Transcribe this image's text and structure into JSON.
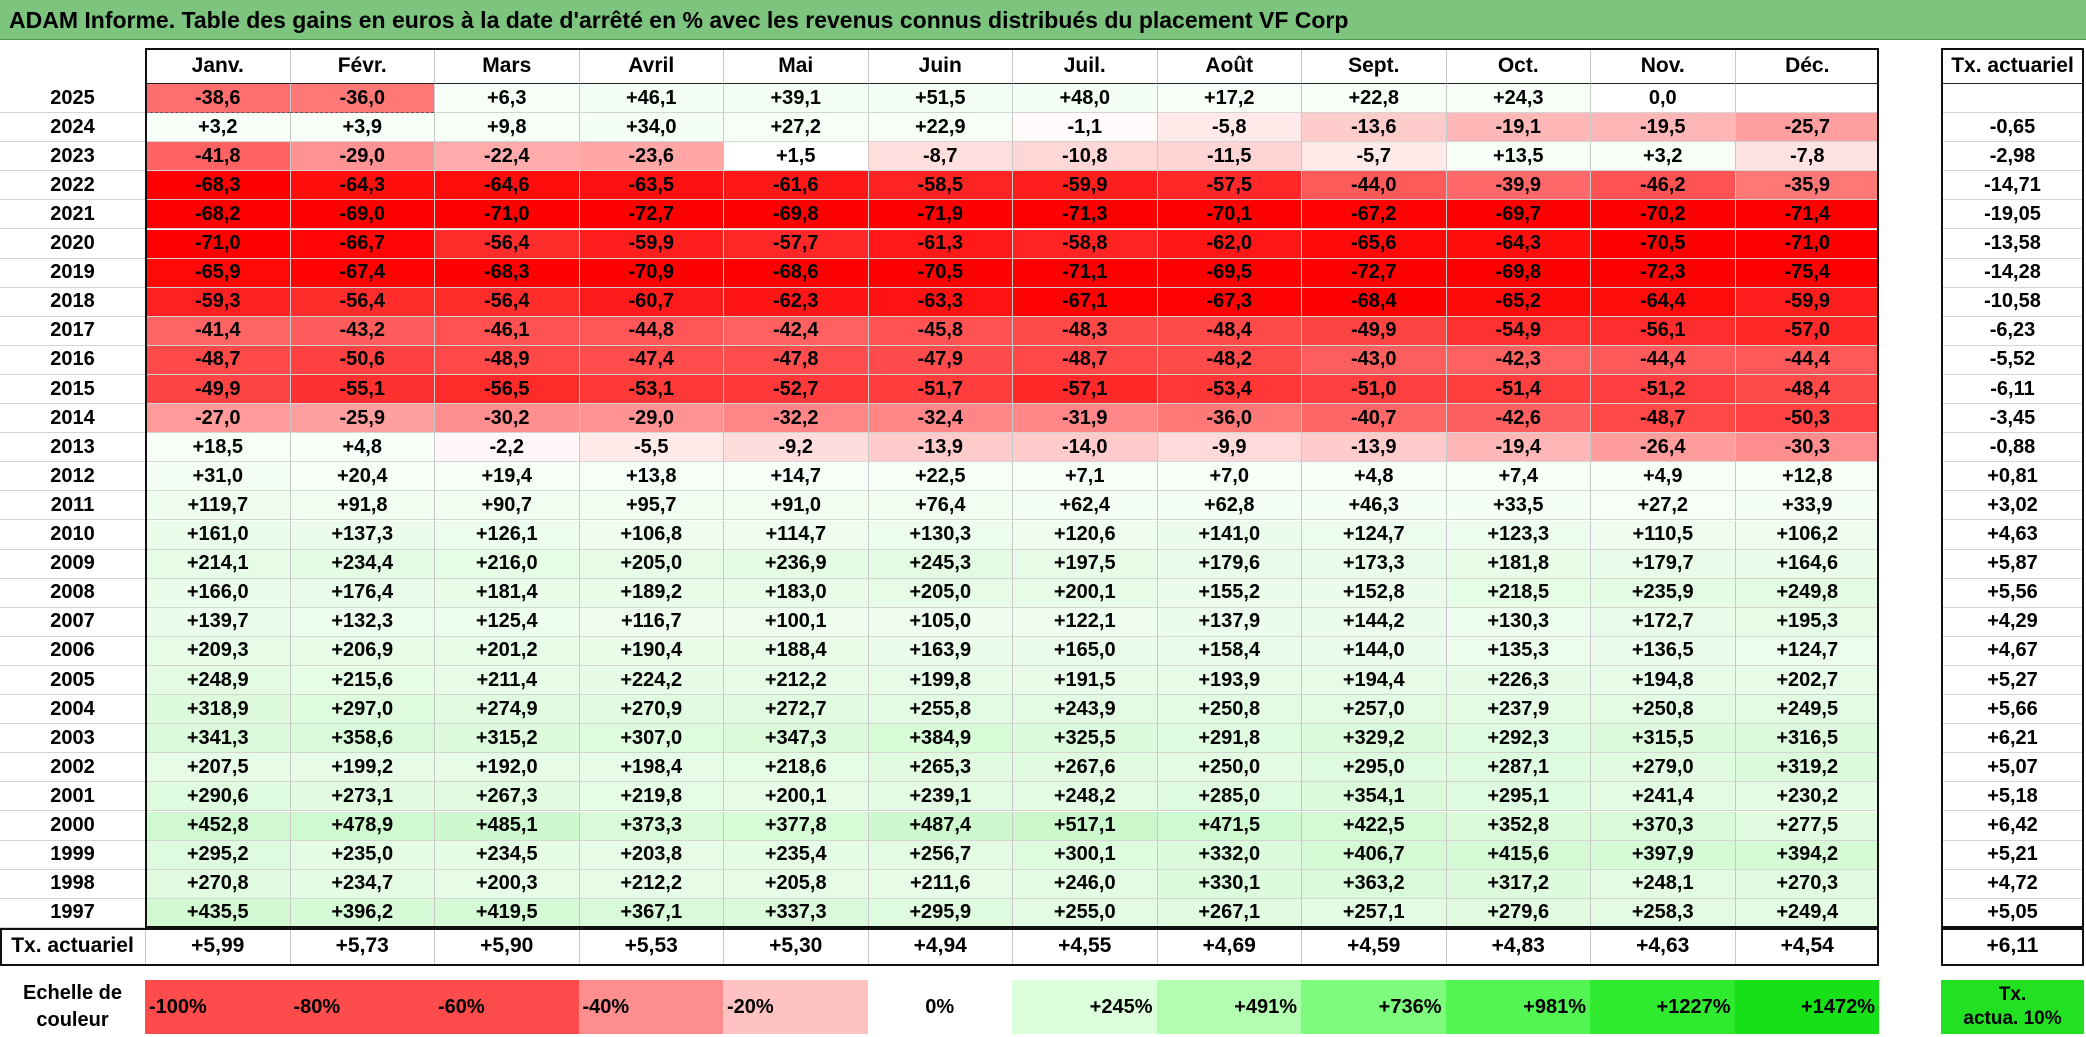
{
  "title": "ADAM Informe. Table des gains en euros à la date d'arrêté en % avec les revenus connus distribués du placement VF Corp",
  "months": [
    "Janv.",
    "Févr.",
    "Mars",
    "Avril",
    "Mai",
    "Juin",
    "Juil.",
    "Août",
    "Sept.",
    "Oct.",
    "Nov.",
    "Déc."
  ],
  "rate_header": "Tx. actuariel",
  "rows": [
    {
      "year": "2025",
      "values": [
        "-38,6",
        "-36,0",
        "+6,3",
        "+46,1",
        "+39,1",
        "+51,5",
        "+48,0",
        "+17,2",
        "+22,8",
        "+24,3",
        "0,0",
        ""
      ],
      "rate": ""
    },
    {
      "year": "2024",
      "values": [
        "+3,2",
        "+3,9",
        "+9,8",
        "+34,0",
        "+27,2",
        "+22,9",
        "-1,1",
        "-5,8",
        "-13,6",
        "-19,1",
        "-19,5",
        "-25,7"
      ],
      "rate": "-0,65"
    },
    {
      "year": "2023",
      "values": [
        "-41,8",
        "-29,0",
        "-22,4",
        "-23,6",
        "+1,5",
        "-8,7",
        "-10,8",
        "-11,5",
        "-5,7",
        "+13,5",
        "+3,2",
        "-7,8"
      ],
      "rate": "-2,98"
    },
    {
      "year": "2022",
      "values": [
        "-68,3",
        "-64,3",
        "-64,6",
        "-63,5",
        "-61,6",
        "-58,5",
        "-59,9",
        "-57,5",
        "-44,0",
        "-39,9",
        "-46,2",
        "-35,9"
      ],
      "rate": "-14,71"
    },
    {
      "year": "2021",
      "values": [
        "-68,2",
        "-69,0",
        "-71,0",
        "-72,7",
        "-69,8",
        "-71,9",
        "-71,3",
        "-70,1",
        "-67,2",
        "-69,7",
        "-70,2",
        "-71,4"
      ],
      "rate": "-19,05"
    },
    {
      "year": "2020",
      "values": [
        "-71,0",
        "-66,7",
        "-56,4",
        "-59,9",
        "-57,7",
        "-61,3",
        "-58,8",
        "-62,0",
        "-65,6",
        "-64,3",
        "-70,5",
        "-71,0"
      ],
      "rate": "-13,58"
    },
    {
      "year": "2019",
      "values": [
        "-65,9",
        "-67,4",
        "-68,3",
        "-70,9",
        "-68,6",
        "-70,5",
        "-71,1",
        "-69,5",
        "-72,7",
        "-69,8",
        "-72,3",
        "-75,4"
      ],
      "rate": "-14,28"
    },
    {
      "year": "2018",
      "values": [
        "-59,3",
        "-56,4",
        "-56,4",
        "-60,7",
        "-62,3",
        "-63,3",
        "-67,1",
        "-67,3",
        "-68,4",
        "-65,2",
        "-64,4",
        "-59,9"
      ],
      "rate": "-10,58"
    },
    {
      "year": "2017",
      "values": [
        "-41,4",
        "-43,2",
        "-46,1",
        "-44,8",
        "-42,4",
        "-45,8",
        "-48,3",
        "-48,4",
        "-49,9",
        "-54,9",
        "-56,1",
        "-57,0"
      ],
      "rate": "-6,23"
    },
    {
      "year": "2016",
      "values": [
        "-48,7",
        "-50,6",
        "-48,9",
        "-47,4",
        "-47,8",
        "-47,9",
        "-48,7",
        "-48,2",
        "-43,0",
        "-42,3",
        "-44,4",
        "-44,4"
      ],
      "rate": "-5,52"
    },
    {
      "year": "2015",
      "values": [
        "-49,9",
        "-55,1",
        "-56,5",
        "-53,1",
        "-52,7",
        "-51,7",
        "-57,1",
        "-53,4",
        "-51,0",
        "-51,4",
        "-51,2",
        "-48,4"
      ],
      "rate": "-6,11"
    },
    {
      "year": "2014",
      "values": [
        "-27,0",
        "-25,9",
        "-30,2",
        "-29,0",
        "-32,2",
        "-32,4",
        "-31,9",
        "-36,0",
        "-40,7",
        "-42,6",
        "-48,7",
        "-50,3"
      ],
      "rate": "-3,45"
    },
    {
      "year": "2013",
      "values": [
        "+18,5",
        "+4,8",
        "-2,2",
        "-5,5",
        "-9,2",
        "-13,9",
        "-14,0",
        "-9,9",
        "-13,9",
        "-19,4",
        "-26,4",
        "-30,3"
      ],
      "rate": "-0,88"
    },
    {
      "year": "2012",
      "values": [
        "+31,0",
        "+20,4",
        "+19,4",
        "+13,8",
        "+14,7",
        "+22,5",
        "+7,1",
        "+7,0",
        "+4,8",
        "+7,4",
        "+4,9",
        "+12,8"
      ],
      "rate": "+0,81"
    },
    {
      "year": "2011",
      "values": [
        "+119,7",
        "+91,8",
        "+90,7",
        "+95,7",
        "+91,0",
        "+76,4",
        "+62,4",
        "+62,8",
        "+46,3",
        "+33,5",
        "+27,2",
        "+33,9"
      ],
      "rate": "+3,02"
    },
    {
      "year": "2010",
      "values": [
        "+161,0",
        "+137,3",
        "+126,1",
        "+106,8",
        "+114,7",
        "+130,3",
        "+120,6",
        "+141,0",
        "+124,7",
        "+123,3",
        "+110,5",
        "+106,2"
      ],
      "rate": "+4,63"
    },
    {
      "year": "2009",
      "values": [
        "+214,1",
        "+234,4",
        "+216,0",
        "+205,0",
        "+236,9",
        "+245,3",
        "+197,5",
        "+179,6",
        "+173,3",
        "+181,8",
        "+179,7",
        "+164,6"
      ],
      "rate": "+5,87"
    },
    {
      "year": "2008",
      "values": [
        "+166,0",
        "+176,4",
        "+181,4",
        "+189,2",
        "+183,0",
        "+205,0",
        "+200,1",
        "+155,2",
        "+152,8",
        "+218,5",
        "+235,9",
        "+249,8"
      ],
      "rate": "+5,56"
    },
    {
      "year": "2007",
      "values": [
        "+139,7",
        "+132,3",
        "+125,4",
        "+116,7",
        "+100,1",
        "+105,0",
        "+122,1",
        "+137,9",
        "+144,2",
        "+130,3",
        "+172,7",
        "+195,3"
      ],
      "rate": "+4,29"
    },
    {
      "year": "2006",
      "values": [
        "+209,3",
        "+206,9",
        "+201,2",
        "+190,4",
        "+188,4",
        "+163,9",
        "+165,0",
        "+158,4",
        "+144,0",
        "+135,3",
        "+136,5",
        "+124,7"
      ],
      "rate": "+4,67"
    },
    {
      "year": "2005",
      "values": [
        "+248,9",
        "+215,6",
        "+211,4",
        "+224,2",
        "+212,2",
        "+199,8",
        "+191,5",
        "+193,9",
        "+194,4",
        "+226,3",
        "+194,8",
        "+202,7"
      ],
      "rate": "+5,27"
    },
    {
      "year": "2004",
      "values": [
        "+318,9",
        "+297,0",
        "+274,9",
        "+270,9",
        "+272,7",
        "+255,8",
        "+243,9",
        "+250,8",
        "+257,0",
        "+237,9",
        "+250,8",
        "+249,5"
      ],
      "rate": "+5,66"
    },
    {
      "year": "2003",
      "values": [
        "+341,3",
        "+358,6",
        "+315,2",
        "+307,0",
        "+347,3",
        "+384,9",
        "+325,5",
        "+291,8",
        "+329,2",
        "+292,3",
        "+315,5",
        "+316,5"
      ],
      "rate": "+6,21"
    },
    {
      "year": "2002",
      "values": [
        "+207,5",
        "+199,2",
        "+192,0",
        "+198,4",
        "+218,6",
        "+265,3",
        "+267,6",
        "+250,0",
        "+295,0",
        "+287,1",
        "+279,0",
        "+319,2"
      ],
      "rate": "+5,07"
    },
    {
      "year": "2001",
      "values": [
        "+290,6",
        "+273,1",
        "+267,3",
        "+219,8",
        "+200,1",
        "+239,1",
        "+248,2",
        "+285,0",
        "+354,1",
        "+295,1",
        "+241,4",
        "+230,2"
      ],
      "rate": "+5,18"
    },
    {
      "year": "2000",
      "values": [
        "+452,8",
        "+478,9",
        "+485,1",
        "+373,3",
        "+377,8",
        "+487,4",
        "+517,1",
        "+471,5",
        "+422,5",
        "+352,8",
        "+370,3",
        "+277,5"
      ],
      "rate": "+6,42"
    },
    {
      "year": "1999",
      "values": [
        "+295,2",
        "+235,0",
        "+234,5",
        "+203,8",
        "+235,4",
        "+256,7",
        "+300,1",
        "+332,0",
        "+406,7",
        "+415,6",
        "+397,9",
        "+394,2"
      ],
      "rate": "+5,21"
    },
    {
      "year": "1998",
      "values": [
        "+270,8",
        "+234,7",
        "+200,3",
        "+212,2",
        "+205,8",
        "+211,6",
        "+246,0",
        "+330,1",
        "+363,2",
        "+317,2",
        "+248,1",
        "+270,3"
      ],
      "rate": "+4,72"
    },
    {
      "year": "1997",
      "values": [
        "+435,5",
        "+396,2",
        "+419,5",
        "+367,1",
        "+337,3",
        "+295,9",
        "+255,0",
        "+267,1",
        "+257,1",
        "+279,6",
        "+258,3",
        "+249,4"
      ],
      "rate": "+5,05"
    }
  ],
  "totals": {
    "label": "Tx. actuariel",
    "values": [
      "+5,99",
      "+5,73",
      "+5,90",
      "+5,53",
      "+5,30",
      "+4,94",
      "+4,55",
      "+4,69",
      "+4,59",
      "+4,83",
      "+4,63",
      "+4,54"
    ],
    "rate": "+6,11"
  },
  "scale": {
    "label_line1": "Echelle de",
    "label_line2": "couleur",
    "items": [
      {
        "text": "-100%",
        "color": "#fe4c4c",
        "align": "left"
      },
      {
        "text": "-80%",
        "color": "#fe4c4c",
        "align": "left"
      },
      {
        "text": "-60%",
        "color": "#fe4c4c",
        "align": "left"
      },
      {
        "text": "-40%",
        "color": "#fe8e8e",
        "align": "left"
      },
      {
        "text": "-20%",
        "color": "#fec2c2",
        "align": "left"
      },
      {
        "text": "0%",
        "color": "#ffffff",
        "align": "center"
      },
      {
        "text": "+245%",
        "color": "#dcffdc",
        "align": "right"
      },
      {
        "text": "+491%",
        "color": "#b2ffb2",
        "align": "right"
      },
      {
        "text": "+736%",
        "color": "#7dfc7d",
        "align": "right"
      },
      {
        "text": "+981%",
        "color": "#52f552",
        "align": "right"
      },
      {
        "text": "+1227%",
        "color": "#2fea2f",
        "align": "right"
      },
      {
        "text": "+1472%",
        "color": "#18e018",
        "align": "right"
      }
    ],
    "legend_line1": "Tx.",
    "legend_line2": "actua. 10%",
    "legend_color": "#22e022"
  },
  "colors": {
    "title_bg": "#7dc47f",
    "negative_max": "#ff0000",
    "positive_max": "#18e018"
  }
}
